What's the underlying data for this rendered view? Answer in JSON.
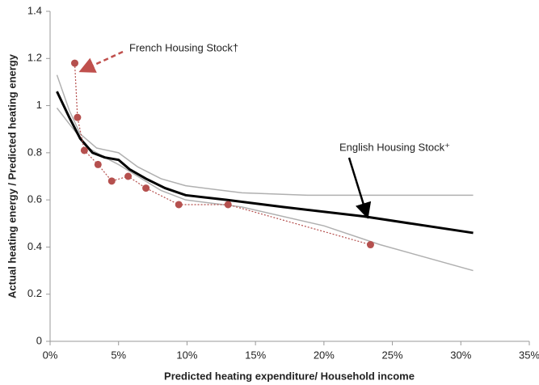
{
  "chart_data": {
    "type": "line",
    "xlabel": "Predicted heating expenditure/ Household income",
    "ylabel": "Actual heating energy / Predicted heating energy",
    "xlim": [
      0,
      35
    ],
    "xticks": [
      {
        "value": 0,
        "label": "0%"
      },
      {
        "value": 5,
        "label": "5%"
      },
      {
        "value": 10,
        "label": "10%"
      },
      {
        "value": 15,
        "label": "15%"
      },
      {
        "value": 20,
        "label": "20%"
      },
      {
        "value": 25,
        "label": "25%"
      },
      {
        "value": 30,
        "label": "30%"
      },
      {
        "value": 35,
        "label": "35%"
      }
    ],
    "ylim": [
      0,
      1.4
    ],
    "yticks": [
      0,
      0.2,
      0.4,
      0.6,
      0.8,
      1,
      1.2,
      1.4
    ],
    "grid": false,
    "series": [
      {
        "color": "#b0b0b0",
        "x": [
          0.5,
          1.4,
          2.2,
          3.4,
          5.0,
          6.4,
          8.1,
          9.9,
          14.0,
          18.8,
          24.7,
          30.9
        ],
        "values": [
          1.13,
          0.98,
          0.88,
          0.82,
          0.8,
          0.74,
          0.69,
          0.66,
          0.63,
          0.62,
          0.62,
          0.62
        ]
      },
      {
        "color": "#b0b0b0",
        "x": [
          0.5,
          1.7,
          2.8,
          4.0,
          5.0,
          6.4,
          8.1,
          9.9,
          14.0,
          20.0,
          24.1,
          30.9
        ],
        "values": [
          0.99,
          0.9,
          0.82,
          0.78,
          0.75,
          0.7,
          0.64,
          0.6,
          0.57,
          0.49,
          0.41,
          0.3
        ]
      },
      {
        "color": "#000000",
        "x": [
          0.5,
          1.4,
          2.2,
          3.1,
          4.0,
          5.0,
          5.8,
          7.0,
          8.4,
          9.9,
          12.9,
          17.0,
          22.9,
          30.9
        ],
        "values": [
          1.06,
          0.95,
          0.86,
          0.8,
          0.78,
          0.77,
          0.73,
          0.69,
          0.65,
          0.62,
          0.6,
          0.57,
          0.53,
          0.46
        ]
      },
      {
        "color": "#b5504e",
        "markers": true,
        "x": [
          1.8,
          2.0,
          2.5,
          3.5,
          4.5,
          5.7,
          7.0,
          9.4,
          13.0,
          23.4
        ],
        "values": [
          1.18,
          0.95,
          0.81,
          0.75,
          0.68,
          0.7,
          0.65,
          0.58,
          0.58,
          0.41
        ]
      }
    ],
    "annotations": [
      {
        "text": "French Housing Stock†",
        "color": "#c0504d"
      },
      {
        "text": "English Housing Stock⁺",
        "color": "#000000"
      }
    ]
  }
}
